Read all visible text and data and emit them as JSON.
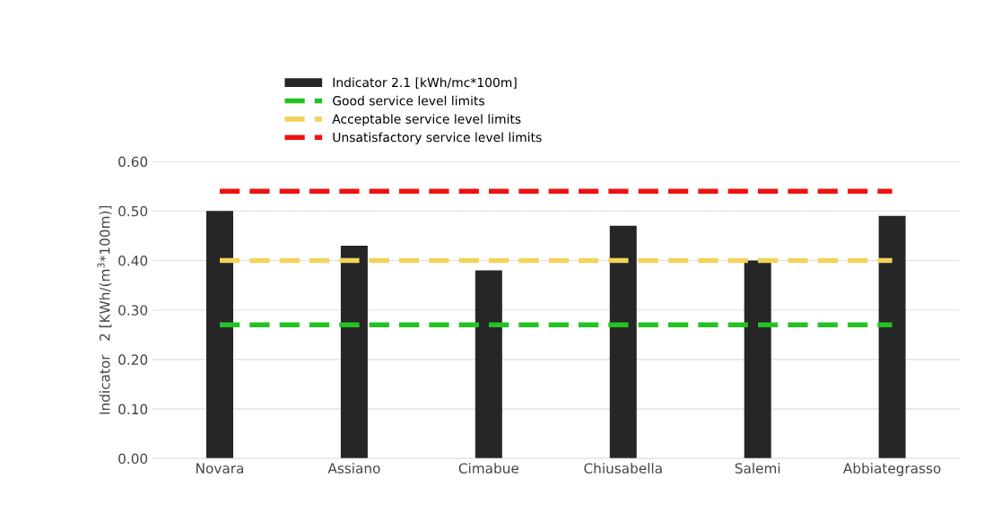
{
  "chart_data": {
    "type": "bar",
    "ylabel": "Indicator   2 [KWh/(m$^{3}$*100m)]",
    "categories": [
      "Novara",
      "Assiano",
      "Cimabue",
      "Chiusabella",
      "Salemi",
      "Abbiategrasso"
    ],
    "series": [
      {
        "name": "Indicator 2.1 [kWh/mc*100m]",
        "color": "#262626",
        "values": [
          0.5,
          0.43,
          0.38,
          0.47,
          0.4,
          0.49
        ]
      },
      {
        "name": "Good service level limits",
        "type": "line",
        "line_style": "dashed",
        "color": "#22c322",
        "values": [
          0.27,
          0.27,
          0.27,
          0.27,
          0.27,
          0.27
        ]
      },
      {
        "name": "Acceptable service level limits",
        "type": "line",
        "line_style": "dashed",
        "color": "#f2d35b",
        "values": [
          0.4,
          0.4,
          0.4,
          0.4,
          0.4,
          0.4
        ]
      },
      {
        "name": "Unsatisfactory service level limits",
        "type": "line",
        "line_style": "dashed",
        "color": "#ee1111",
        "values": [
          0.54,
          0.54,
          0.54,
          0.54,
          0.54,
          0.54
        ]
      }
    ],
    "ylim": [
      0,
      0.6
    ],
    "yticks": [
      {
        "value": 0,
        "label": "0.00"
      },
      {
        "value": 0.1,
        "label": "0.10"
      },
      {
        "value": 0.2,
        "label": "0.20"
      },
      {
        "value": 0.3,
        "label": "0.30"
      },
      {
        "value": 0.4,
        "label": "0.40"
      },
      {
        "value": 0.5,
        "label": "0.50"
      },
      {
        "value": 0.6,
        "label": "0.60"
      }
    ],
    "grid": "y",
    "legend": "top"
  }
}
